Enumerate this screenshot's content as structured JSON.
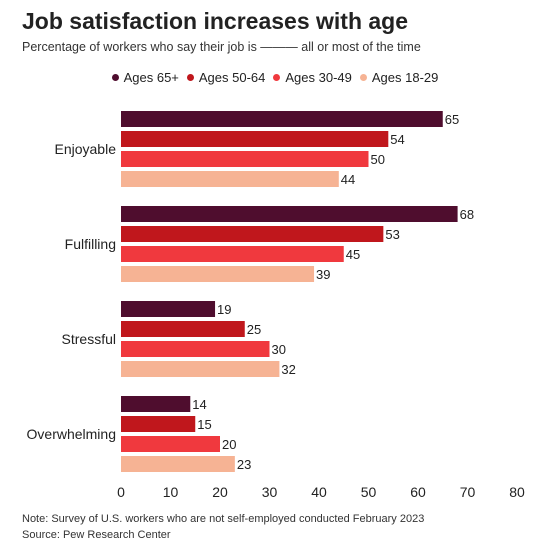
{
  "title": "Job satisfaction increases with age",
  "subtitle": "Percentage of workers who say their job is ——— all or most of the time",
  "note": "Note: Survey of U.S. workers who are not self-employed conducted February 2023",
  "source": "Source: Pew Research Center",
  "chart_data": {
    "type": "bar",
    "orientation": "horizontal",
    "categories": [
      "Enjoyable",
      "Fulfilling",
      "Stressful",
      "Overwhelming"
    ],
    "series": [
      {
        "name": "Ages 65+",
        "color": "#4f0d2e",
        "values": [
          65,
          68,
          19,
          14
        ]
      },
      {
        "name": "Ages 50-64",
        "color": "#c0171c",
        "values": [
          54,
          53,
          25,
          15
        ]
      },
      {
        "name": "Ages 30-49",
        "color": "#f0393e",
        "values": [
          50,
          45,
          30,
          20
        ]
      },
      {
        "name": "Ages 18-29",
        "color": "#f6b394",
        "values": [
          44,
          39,
          32,
          23
        ]
      }
    ],
    "xlim": [
      0,
      80
    ],
    "xticks": [
      0,
      10,
      20,
      30,
      40,
      50,
      60,
      70,
      80
    ],
    "legend_position": "top",
    "grid": false,
    "data_labels": true
  }
}
